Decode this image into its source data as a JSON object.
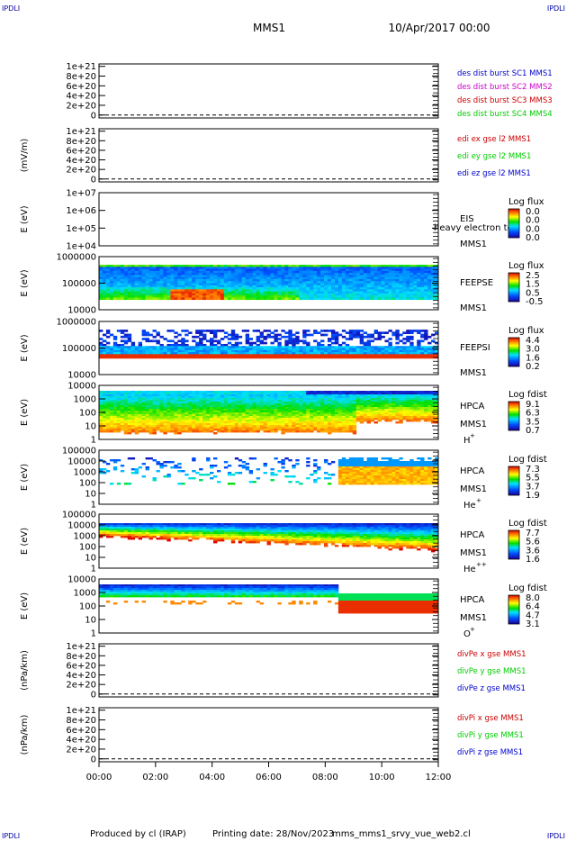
{
  "header": {
    "corner_left": "IPDLI",
    "corner_right": "IPDLI",
    "mission": "MMS1",
    "date": "10/Apr/2017 00:00"
  },
  "footer": {
    "produced_by": "Produced by cl (IRAP)",
    "printing_date": "Printing date: 28/Nov/2023",
    "file": "mms_mms1_srvy_vue_web2.cl",
    "corner_left": "IPDLI",
    "corner_right": "IPDLI"
  },
  "time_axis": {
    "ticks": [
      "00:00",
      "02:00",
      "04:00",
      "06:00",
      "08:00",
      "10:00",
      "12:00"
    ]
  },
  "colors": {
    "blue": "#0000cc",
    "green": "#00cc00",
    "red": "#cc0000",
    "magenta": "#cc00cc"
  },
  "chart_data": [
    {
      "type": "line",
      "ylabel": "",
      "yticks": [
        "1e+21",
        "8e+20",
        "6e+20",
        "4e+20",
        "2e+20",
        "0"
      ],
      "yvalues": [
        1e+21,
        8e+20,
        6e+20,
        4e+20,
        2e+20,
        0
      ],
      "ylim": [
        -6e+19,
        1.05e+21
      ],
      "zero_line": true,
      "legend": [
        {
          "text": "des dist burst SC1 MMS1",
          "color": "#0000cc"
        },
        {
          "text": "des dist burst SC2 MMS2",
          "color": "#cc00cc"
        },
        {
          "text": "des dist burst SC3 MMS3",
          "color": "#cc0000"
        },
        {
          "text": "des dist burst SC4 MMS4",
          "color": "#00cc00"
        }
      ]
    },
    {
      "type": "line",
      "ylabel": "(mV/m)",
      "yticks": [
        "1e+21",
        "8e+20",
        "6e+20",
        "4e+20",
        "2e+20",
        "0"
      ],
      "yvalues": [
        1e+21,
        8e+20,
        6e+20,
        4e+20,
        2e+20,
        0
      ],
      "ylim": [
        -6e+19,
        1.05e+21
      ],
      "zero_line": true,
      "legend": [
        {
          "text": "edi ex gse l2 MMS1",
          "color": "#cc0000"
        },
        {
          "text": "edi ey gse l2 MMS1",
          "color": "#00cc00"
        },
        {
          "text": "edi ez gse l2 MMS1",
          "color": "#0000cc"
        }
      ]
    },
    {
      "type": "heatmap",
      "ylabel": "E (eV)",
      "yticks": [
        "1e+07",
        "1e+06",
        "1e+05",
        "1e+04"
      ],
      "instrument": "EIS",
      "spacecraft": "MMS1",
      "overlay": "heavy electron to",
      "colorbar_title": "Log flux",
      "colorbar_ticks": [
        "0.0",
        "0.0",
        "0.0",
        "0.0"
      ],
      "spectrum": null
    },
    {
      "type": "heatmap",
      "ylabel": "E (eV)",
      "yticks": [
        "1000000",
        "100000",
        "10000"
      ],
      "instrument": "FEEPSE",
      "spacecraft": "MMS1",
      "colorbar_title": "Log flux",
      "colorbar_ticks": [
        "2.5",
        "1.5",
        "0.5",
        "-0.5"
      ],
      "spectrum": "feepse"
    },
    {
      "type": "heatmap",
      "ylabel": "E (eV)",
      "yticks": [
        "1000000",
        "100000",
        "10000"
      ],
      "instrument": "FEEPSI",
      "spacecraft": "MMS1",
      "colorbar_title": "Log flux",
      "colorbar_ticks": [
        "4.4",
        "3.0",
        "1.6",
        "0.2"
      ],
      "spectrum": "feepsi"
    },
    {
      "type": "heatmap",
      "ylabel": "E (eV)",
      "yticks": [
        "10000",
        "1000",
        "100",
        "10",
        "1"
      ],
      "instrument": "HPCA",
      "spacecraft": "MMS1",
      "species": "H",
      "species_sup": "+",
      "colorbar_title": "Log fdist",
      "colorbar_ticks": [
        "9.1",
        "6.3",
        "3.5",
        "0.7"
      ],
      "spectrum": "hplus"
    },
    {
      "type": "heatmap",
      "ylabel": "E (eV)",
      "yticks": [
        "100000",
        "10000",
        "1000",
        "100",
        "10",
        "1"
      ],
      "instrument": "HPCA",
      "spacecraft": "MMS1",
      "species": "He",
      "species_sup": "+",
      "colorbar_title": "Log fdist",
      "colorbar_ticks": [
        "7.3",
        "5.5",
        "3.7",
        "1.9"
      ],
      "spectrum": "heplus"
    },
    {
      "type": "heatmap",
      "ylabel": "E (eV)",
      "yticks": [
        "100000",
        "10000",
        "1000",
        "100",
        "10",
        "1"
      ],
      "instrument": "HPCA",
      "spacecraft": "MMS1",
      "species": "He",
      "species_sup": "++",
      "colorbar_title": "Log fdist",
      "colorbar_ticks": [
        "7.7",
        "5.6",
        "3.6",
        "1.6"
      ],
      "spectrum": "heplusplus"
    },
    {
      "type": "heatmap",
      "ylabel": "E (eV)",
      "yticks": [
        "10000",
        "1000",
        "100",
        "10",
        "1"
      ],
      "instrument": "HPCA",
      "spacecraft": "MMS1",
      "species": "O",
      "species_sup": "+",
      "colorbar_title": "Log fdist",
      "colorbar_ticks": [
        "8.0",
        "6.4",
        "4.7",
        "3.1"
      ],
      "spectrum": "oplus"
    },
    {
      "type": "line",
      "ylabel": "(nPa/km)",
      "yticks": [
        "1e+21",
        "8e+20",
        "6e+20",
        "4e+20",
        "2e+20",
        "0"
      ],
      "yvalues": [
        1e+21,
        8e+20,
        6e+20,
        4e+20,
        2e+20,
        0
      ],
      "ylim": [
        -6e+19,
        1.05e+21
      ],
      "zero_line": true,
      "legend": [
        {
          "text": "divPe x gse MMS1",
          "color": "#cc0000"
        },
        {
          "text": "divPe y gse MMS1",
          "color": "#00cc00"
        },
        {
          "text": "divPe z gse MMS1",
          "color": "#0000cc"
        }
      ]
    },
    {
      "type": "line",
      "ylabel": "(nPa/km)",
      "yticks": [
        "1e+21",
        "8e+20",
        "6e+20",
        "4e+20",
        "2e+20",
        "0"
      ],
      "yvalues": [
        1e+21,
        8e+20,
        6e+20,
        4e+20,
        2e+20,
        0
      ],
      "ylim": [
        -6e+19,
        1.05e+21
      ],
      "zero_line": true,
      "legend": [
        {
          "text": "divPi x gse MMS1",
          "color": "#cc0000"
        },
        {
          "text": "divPi y gse MMS1",
          "color": "#00cc00"
        },
        {
          "text": "divPi z gse MMS1",
          "color": "#0000cc"
        }
      ]
    }
  ]
}
